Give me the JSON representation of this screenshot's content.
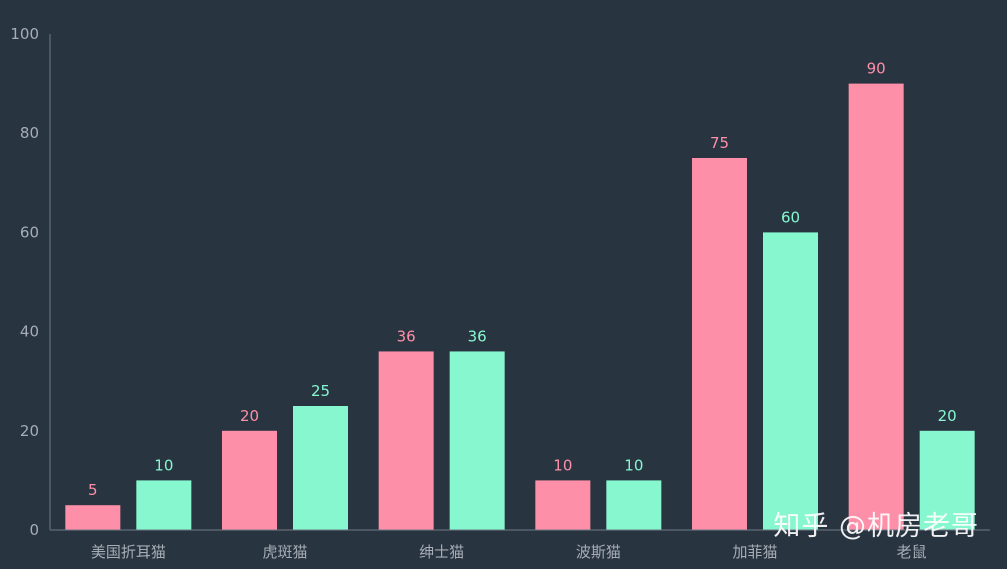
{
  "chart_data": {
    "type": "bar",
    "categories": [
      "美国折耳猫",
      "虎斑猫",
      "绅士猫",
      "波斯猫",
      "加菲猫",
      "老鼠"
    ],
    "series": [
      {
        "values": [
          5,
          20,
          36,
          10,
          75,
          90
        ],
        "color": "#fe8fa8"
      },
      {
        "values": [
          10,
          25,
          36,
          10,
          60,
          20
        ],
        "color": "#87f7cf"
      }
    ],
    "yticks": [
      0,
      20,
      40,
      60,
      80,
      100
    ],
    "ylim": [
      0,
      100
    ],
    "grid": false,
    "data_labels": true
  },
  "watermark": "知乎 @机房老哥",
  "colors": {
    "background": "#293441",
    "axis": "#6e7a85",
    "tick_text": "#a6adb5"
  }
}
